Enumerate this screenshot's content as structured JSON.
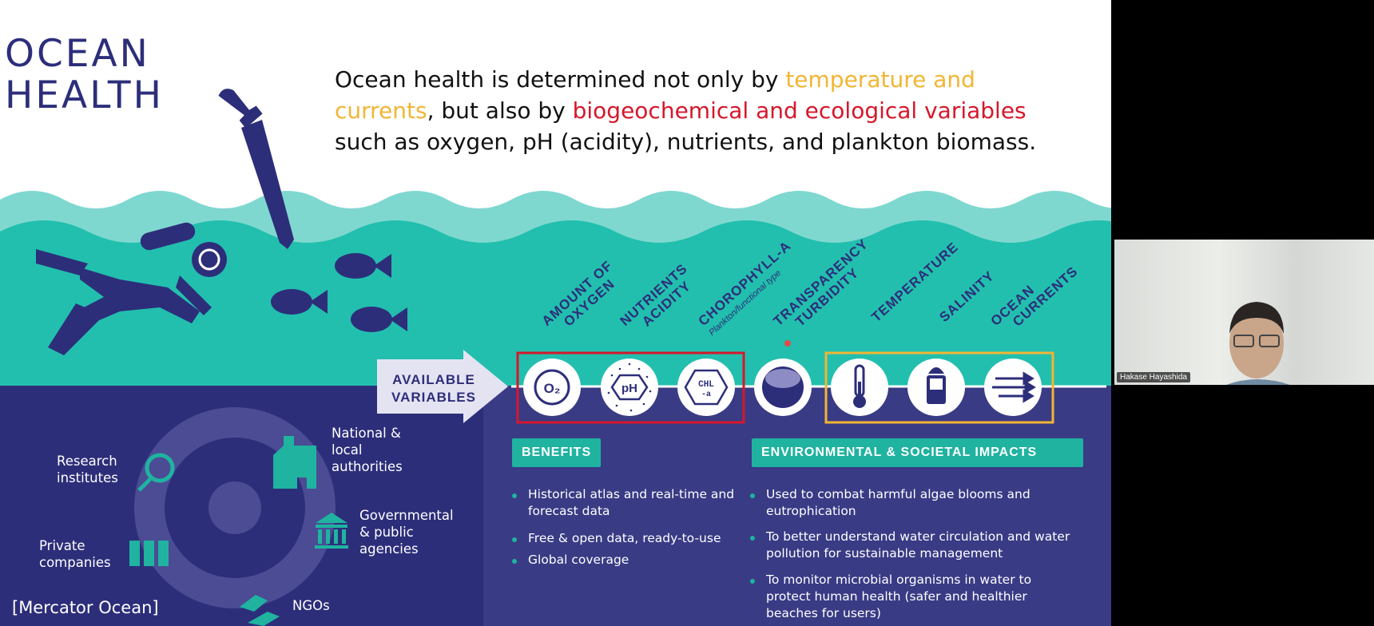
{
  "slide": {
    "title_lines": [
      "OCEAN",
      "HEALTH"
    ],
    "intro": {
      "part1": "Ocean health is determined not only by ",
      "highlight1": "temperature and currents",
      "part2": ", but also by ",
      "highlight2": "biogeochemical and ecological variables",
      "part3": " such as oxygen, pH (acidity), nutrients, and plankton biomass."
    },
    "available_variables": [
      "AVAILABLE",
      "VARIABLES"
    ],
    "variables": [
      {
        "lines": [
          "AMOUNT OF",
          "OXYGEN"
        ],
        "icon": "o2-icon",
        "glyph": "O₂"
      },
      {
        "lines": [
          "NUTRIENTS",
          "ACIDITY"
        ],
        "icon": "ph-icon",
        "glyph": "pH"
      },
      {
        "lines": [
          "CHOROPHYLL-A"
        ],
        "sub": "Plankton/functional type",
        "icon": "chlorophyll-icon",
        "glyph": "CHL -a"
      },
      {
        "lines": [
          "TRANSPARENCY",
          "TURBIDITY"
        ],
        "icon": "sphere-icon"
      },
      {
        "lines": [
          "TEMPERATURE"
        ],
        "icon": "thermometer-icon"
      },
      {
        "lines": [
          "SALINITY"
        ],
        "icon": "salt-shaker-icon"
      },
      {
        "lines": [
          "OCEAN",
          "CURRENTS"
        ],
        "icon": "currents-icon"
      }
    ],
    "benefits": {
      "label": "BENEFITS",
      "items": [
        "Historical atlas and real-time and forecast data",
        "Free & open data, ready-to-use",
        "Global coverage"
      ]
    },
    "impacts": {
      "label": "ENVIRONMENTAL & SOCIETAL IMPACTS",
      "items": [
        "Used to combat harmful algae blooms and eutrophication",
        "To better understand water circulation and water pollution for sustainable management",
        "To monitor microbial organisms in water to protect human health (safer and healthier beaches for users)"
      ]
    },
    "users": {
      "research": "Research institutes",
      "private": "Private companies",
      "national": "National & local authorities",
      "governmental": "Governmental & public agencies",
      "ngos": "NGOs"
    },
    "credit": "[Mercator Ocean]"
  },
  "video": {
    "participant_name": "Hakase Hayashida"
  },
  "colors": {
    "navy": "#2d2e7a",
    "teal": "#1fb3a0",
    "light_teal": "#7fd8cf",
    "red_box": "#d6172b",
    "yellow_box": "#f2b534"
  }
}
